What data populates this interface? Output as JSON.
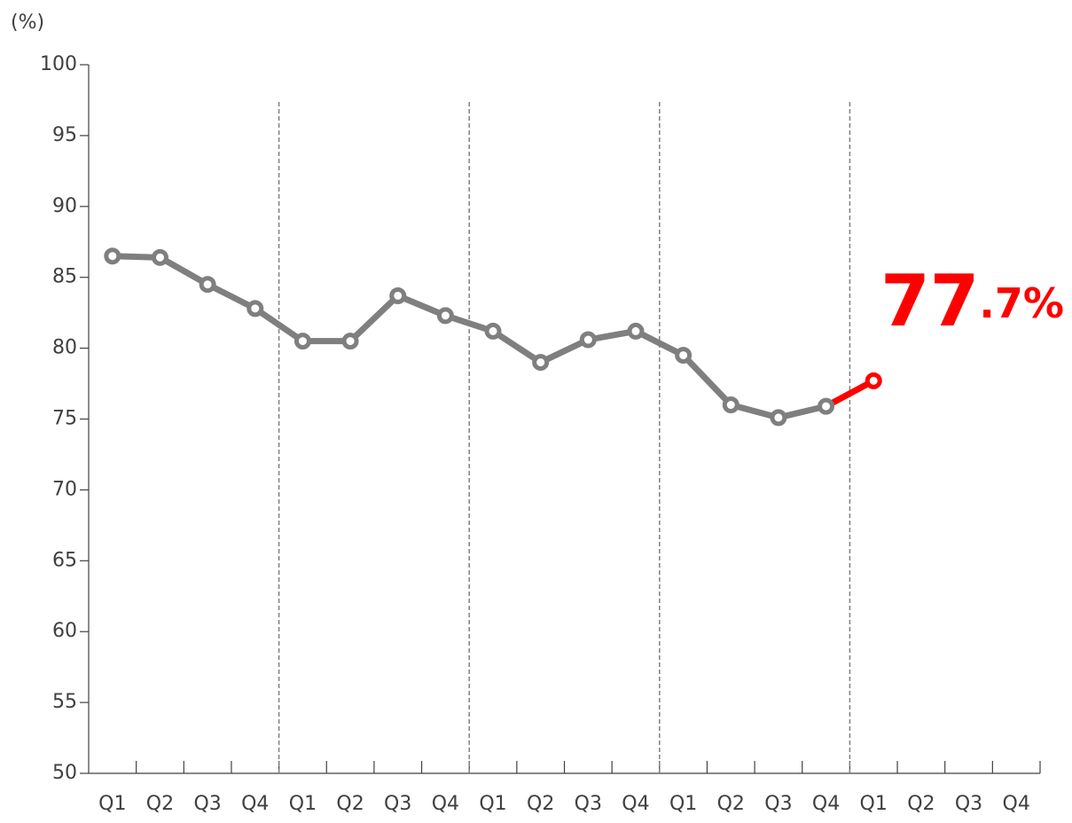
{
  "chart_data": {
    "type": "line",
    "y_label": "(%)",
    "categories": [
      "Q1",
      "Q2",
      "Q3",
      "Q4",
      "Q1",
      "Q2",
      "Q3",
      "Q4",
      "Q1",
      "Q2",
      "Q3",
      "Q4",
      "Q1",
      "Q2",
      "Q3",
      "Q4",
      "Q1",
      "Q2",
      "Q3",
      "Q4"
    ],
    "series": [
      {
        "color": "#7f7f7f",
        "last_color": "#ff0000",
        "values": [
          86.5,
          86.4,
          84.5,
          82.8,
          80.5,
          80.5,
          83.7,
          82.3,
          81.2,
          79.0,
          80.6,
          81.2,
          79.5,
          76.0,
          75.1,
          75.9,
          77.7,
          null,
          null,
          null
        ],
        "value_labels": [
          null,
          null,
          null,
          null,
          null,
          null,
          null,
          null,
          null,
          null,
          null,
          null,
          null,
          null,
          null,
          null,
          "77.7%",
          null,
          null,
          null
        ]
      }
    ],
    "ylim": [
      50,
      100
    ],
    "yticks": [
      50,
      55,
      60,
      65,
      70,
      75,
      80,
      85,
      90,
      95,
      100
    ],
    "group_size": 4
  }
}
